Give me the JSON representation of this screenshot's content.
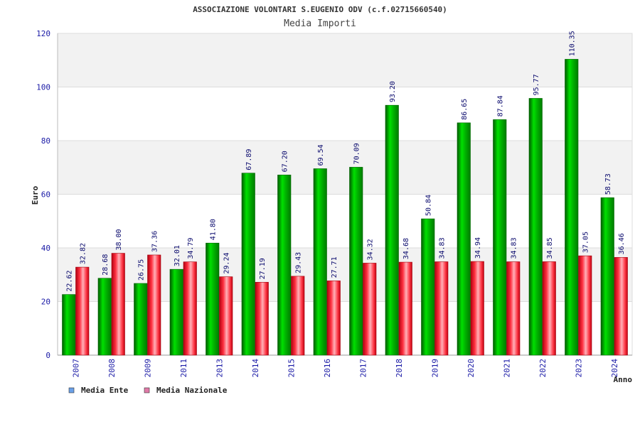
{
  "chart_data": {
    "type": "bar",
    "title": "ASSOCIAZIONE VOLONTARI S.EUGENIO ODV (c.f.02715660540)",
    "subtitle": "Media Importi",
    "xlabel": "Anno",
    "ylabel": "Euro",
    "ylim": [
      0,
      120
    ],
    "yticks": [
      "0",
      "20",
      "40",
      "60",
      "80",
      "100",
      "120"
    ],
    "grid": true,
    "legend_position": "bottom-left",
    "categories": [
      "2007",
      "2008",
      "2009",
      "2011",
      "2013",
      "2014",
      "2015",
      "2016",
      "2017",
      "2018",
      "2019",
      "2020",
      "2021",
      "2022",
      "2023",
      "2024"
    ],
    "series": [
      {
        "name": "Media Ente",
        "color": "#00c000",
        "legend_color": "#6aa0e8",
        "values": [
          22.62,
          28.68,
          26.75,
          32.01,
          41.8,
          67.89,
          67.2,
          69.54,
          70.09,
          93.2,
          50.84,
          86.65,
          87.84,
          95.77,
          110.35,
          58.73
        ],
        "labels": [
          "22.62",
          "28.68",
          "26.75",
          "32.01",
          "41.80",
          "67.89",
          "67.20",
          "69.54",
          "70.09",
          "93.20",
          "50.84",
          "86.65",
          "87.84",
          "95.77",
          "110.35",
          "58.73"
        ]
      },
      {
        "name": "Media Nazionale",
        "color": "#e8101c",
        "legend_color": "#e07aa8",
        "values": [
          32.82,
          38.0,
          37.36,
          34.79,
          29.24,
          27.19,
          29.43,
          27.71,
          34.32,
          34.68,
          34.83,
          34.94,
          34.83,
          34.85,
          37.05,
          36.46
        ],
        "labels": [
          "32.82",
          "38.00",
          "37.36",
          "34.79",
          "29.24",
          "27.19",
          "29.43",
          "27.71",
          "34.32",
          "34.68",
          "34.83",
          "34.94",
          "34.83",
          "34.85",
          "37.05",
          "36.46"
        ]
      }
    ]
  }
}
